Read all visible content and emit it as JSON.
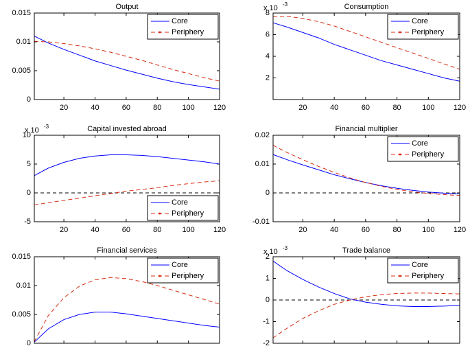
{
  "chart_data": [
    {
      "type": "line",
      "title": "Output",
      "x": [
        1,
        10,
        20,
        30,
        40,
        50,
        60,
        70,
        80,
        90,
        100,
        110,
        120
      ],
      "series": [
        {
          "name": "Core",
          "color": "#0000ff",
          "style": "solid",
          "values": [
            0.011,
            0.0098,
            0.0087,
            0.0077,
            0.0067,
            0.0059,
            0.0051,
            0.0044,
            0.0037,
            0.0031,
            0.0026,
            0.0022,
            0.0018
          ]
        },
        {
          "name": "Periphery",
          "color": "#d62b0e",
          "style": "dashed",
          "values": [
            0.0101,
            0.01,
            0.0097,
            0.0093,
            0.0088,
            0.0082,
            0.0075,
            0.0068,
            0.006,
            0.0052,
            0.0045,
            0.0038,
            0.0032
          ]
        }
      ],
      "xlim": [
        1,
        120
      ],
      "xticks": [
        20,
        40,
        60,
        80,
        100,
        120
      ],
      "ylim": [
        0,
        0.015
      ],
      "yticks": [
        0,
        0.005,
        0.01,
        0.015
      ],
      "legend": "upper right",
      "zero_line": false
    },
    {
      "type": "line",
      "title": "Consumption",
      "y_exponent": {
        "base": "x 10",
        "exponent": "-3"
      },
      "x": [
        1,
        10,
        20,
        30,
        40,
        50,
        60,
        70,
        80,
        90,
        100,
        110,
        120
      ],
      "series": [
        {
          "name": "Core",
          "color": "#0000ff",
          "style": "solid",
          "values": [
            7.1,
            6.7,
            6.2,
            5.7,
            5.1,
            4.6,
            4.1,
            3.6,
            3.2,
            2.8,
            2.4,
            2.0,
            1.7
          ]
        },
        {
          "name": "Periphery",
          "color": "#d62b0e",
          "style": "dashed",
          "values": [
            7.7,
            7.7,
            7.5,
            7.2,
            6.8,
            6.3,
            5.8,
            5.3,
            4.8,
            4.3,
            3.8,
            3.3,
            2.8
          ]
        }
      ],
      "xlim": [
        1,
        120
      ],
      "xticks": [
        20,
        40,
        60,
        80,
        100,
        120
      ],
      "ylim": [
        0,
        8
      ],
      "yticks": [
        2,
        4,
        6,
        8
      ],
      "legend": "upper right",
      "zero_line": false
    },
    {
      "type": "line",
      "title": "Capital invested abroad",
      "y_exponent": {
        "base": "x 10",
        "exponent": "-3"
      },
      "x": [
        1,
        10,
        20,
        30,
        40,
        50,
        60,
        70,
        80,
        90,
        100,
        110,
        120
      ],
      "series": [
        {
          "name": "Core",
          "color": "#0000ff",
          "style": "solid",
          "values": [
            3.0,
            4.3,
            5.3,
            6.0,
            6.4,
            6.6,
            6.6,
            6.5,
            6.3,
            6.0,
            5.7,
            5.4,
            5.0
          ]
        },
        {
          "name": "Periphery",
          "color": "#d62b0e",
          "style": "dashed",
          "values": [
            -2.1,
            -1.7,
            -1.3,
            -0.9,
            -0.5,
            -0.1,
            0.3,
            0.6,
            0.9,
            1.3,
            1.6,
            1.9,
            2.1
          ]
        }
      ],
      "xlim": [
        1,
        120
      ],
      "xticks": [
        20,
        40,
        60,
        80,
        100,
        120
      ],
      "ylim": [
        -5,
        10
      ],
      "yticks": [
        -5,
        0,
        5,
        10
      ],
      "legend": "lower right",
      "zero_line": true
    },
    {
      "type": "line",
      "title": "Financial multiplier",
      "x": [
        1,
        10,
        20,
        30,
        40,
        50,
        60,
        70,
        80,
        90,
        100,
        110,
        120
      ],
      "series": [
        {
          "name": "Core",
          "color": "#0000ff",
          "style": "solid",
          "values": [
            0.0133,
            0.0115,
            0.0097,
            0.008,
            0.0063,
            0.0049,
            0.0036,
            0.0025,
            0.0016,
            0.0009,
            0.0003,
            -0.0001,
            -0.0004
          ]
        },
        {
          "name": "Periphery",
          "color": "#d62b0e",
          "style": "dashed",
          "values": [
            0.0165,
            0.014,
            0.0115,
            0.0092,
            0.0071,
            0.0052,
            0.0036,
            0.0023,
            0.0012,
            0.0004,
            -0.0002,
            -0.0006,
            -0.0009
          ]
        }
      ],
      "xlim": [
        1,
        120
      ],
      "xticks": [
        20,
        40,
        60,
        80,
        100,
        120
      ],
      "ylim": [
        -0.01,
        0.02
      ],
      "yticks": [
        -0.01,
        0,
        0.01,
        0.02
      ],
      "legend": "upper right",
      "zero_line": true
    },
    {
      "type": "line",
      "title": "Financial services",
      "x": [
        1,
        10,
        20,
        30,
        40,
        50,
        60,
        70,
        80,
        90,
        100,
        110,
        120
      ],
      "series": [
        {
          "name": "Core",
          "color": "#0000ff",
          "style": "solid",
          "values": [
            0.0002,
            0.0025,
            0.0041,
            0.005,
            0.0054,
            0.0054,
            0.0051,
            0.0047,
            0.0043,
            0.0039,
            0.0035,
            0.0031,
            0.0028
          ]
        },
        {
          "name": "Periphery",
          "color": "#d62b0e",
          "style": "dashed",
          "values": [
            0.0003,
            0.0048,
            0.0079,
            0.0099,
            0.011,
            0.0114,
            0.0112,
            0.0107,
            0.01,
            0.0092,
            0.0084,
            0.0076,
            0.0068
          ]
        }
      ],
      "xlim": [
        1,
        120
      ],
      "xticks": [
        20,
        40,
        60,
        80,
        100,
        120
      ],
      "ylim": [
        0,
        0.015
      ],
      "yticks": [
        0,
        0.005,
        0.01,
        0.015
      ],
      "legend": "upper right",
      "zero_line": false
    },
    {
      "type": "line",
      "title": "Trade balance",
      "y_exponent": {
        "base": "x 10",
        "exponent": "-3"
      },
      "x": [
        1,
        10,
        20,
        30,
        40,
        50,
        60,
        70,
        80,
        90,
        100,
        110,
        120
      ],
      "series": [
        {
          "name": "Core",
          "color": "#0000ff",
          "style": "solid",
          "values": [
            1.8,
            1.35,
            0.95,
            0.6,
            0.3,
            0.05,
            -0.1,
            -0.2,
            -0.27,
            -0.3,
            -0.3,
            -0.28,
            -0.25
          ]
        },
        {
          "name": "Periphery",
          "color": "#d62b0e",
          "style": "dashed",
          "values": [
            -1.75,
            -1.3,
            -0.85,
            -0.5,
            -0.2,
            0.0,
            0.15,
            0.25,
            0.3,
            0.32,
            0.32,
            0.3,
            0.28
          ]
        }
      ],
      "xlim": [
        1,
        120
      ],
      "xticks": [
        20,
        40,
        60,
        80,
        100,
        120
      ],
      "ylim": [
        -2,
        2
      ],
      "yticks": [
        -2,
        -1,
        0,
        1,
        2
      ],
      "legend": "upper right",
      "zero_line": true
    }
  ]
}
